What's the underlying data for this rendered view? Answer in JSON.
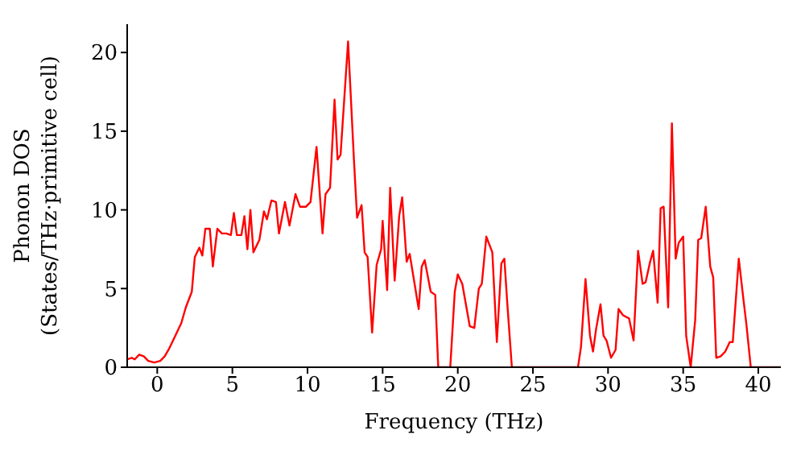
{
  "chart_data": {
    "type": "line",
    "xlabel": "Frequency (THz)",
    "ylabel": "Phonon DOS\n(States/THz·primitive cell)",
    "xlim": [
      -2,
      41.5
    ],
    "xticks": [
      0,
      5,
      10,
      15,
      20,
      25,
      30,
      35,
      40
    ],
    "ylim": [
      0,
      21.8
    ],
    "yticks": [
      0,
      5,
      10,
      15,
      20
    ],
    "grid": false,
    "legend": false,
    "marker": "none",
    "line_style": "solid",
    "x": [
      -2,
      -1.7,
      -1.5,
      -1.2,
      -0.9,
      -0.6,
      -0.2,
      0.2,
      0.5,
      0.8,
      1.2,
      1.6,
      1.9,
      2.3,
      2.5,
      2.8,
      3,
      3.2,
      3.5,
      3.7,
      4,
      4.3,
      4.6,
      4.9,
      5.1,
      5.3,
      5.6,
      5.8,
      6,
      6.2,
      6.4,
      6.8,
      7.1,
      7.3,
      7.6,
      7.9,
      8.1,
      8.5,
      8.8,
      9.2,
      9.5,
      9.9,
      10.2,
      10.6,
      11,
      11.2,
      11.5,
      11.8,
      12,
      12.2,
      12.7,
      13.1,
      13.3,
      13.6,
      13.8,
      14,
      14.3,
      14.6,
      14.9,
      15,
      15.3,
      15.5,
      15.8,
      16.1,
      16.3,
      16.6,
      16.8,
      17.4,
      17.6,
      17.8,
      18.2,
      18.5,
      18.7,
      19.5,
      19.8,
      20,
      20.3,
      20.8,
      21.1,
      21.4,
      21.6,
      21.9,
      22.3,
      22.6,
      22.9,
      23.1,
      23.3,
      23.6,
      28,
      28.2,
      28.5,
      28.8,
      29,
      29.2,
      29.5,
      29.7,
      29.9,
      30.2,
      30.5,
      30.7,
      31,
      31.4,
      31.7,
      32,
      32.3,
      32.5,
      32.8,
      33,
      33.3,
      33.5,
      33.7,
      34,
      34.25,
      34.5,
      34.7,
      35,
      35.2,
      35.5,
      35.8,
      36,
      36.2,
      36.5,
      36.8,
      37,
      37.2,
      37.5,
      37.8,
      38.1,
      38.3,
      38.7,
      39,
      39.2,
      39.5,
      41.5
    ],
    "series": [
      {
        "color": "#ff0000",
        "values": [
          0.5,
          0.6,
          0.5,
          0.8,
          0.7,
          0.4,
          0.3,
          0.4,
          0.7,
          1.2,
          2,
          2.8,
          3.8,
          4.8,
          7,
          7.6,
          7.1,
          8.8,
          8.8,
          6.4,
          8.8,
          8.5,
          8.5,
          8.4,
          9.8,
          8.4,
          8.4,
          9.6,
          7.5,
          10,
          7.3,
          8.1,
          9.9,
          9.4,
          10.6,
          10.5,
          8.5,
          10.5,
          9,
          11,
          10.2,
          10.2,
          10.5,
          14,
          8.5,
          11,
          11.4,
          17,
          13.2,
          13.5,
          20.7,
          13,
          9.5,
          10.3,
          7.3,
          7,
          2.2,
          6.5,
          7.5,
          9.3,
          4.9,
          11.4,
          5.5,
          9.6,
          10.8,
          6.7,
          7.2,
          3.7,
          6.4,
          6.8,
          4.8,
          4.6,
          0,
          0,
          4.8,
          5.9,
          5.3,
          2.6,
          2.5,
          5,
          5.3,
          8.3,
          7.3,
          1.6,
          6.6,
          6.9,
          4,
          0,
          0,
          1.3,
          5.6,
          2,
          1,
          2.4,
          4,
          2,
          1.7,
          0.6,
          1.1,
          3.7,
          3.3,
          3.1,
          1.7,
          7.4,
          5.3,
          5.4,
          6.7,
          7.4,
          4.1,
          10.1,
          10.2,
          3.8,
          15.5,
          6.9,
          7.9,
          8.3,
          2,
          0,
          3,
          8.1,
          8.2,
          10.2,
          6.4,
          5.7,
          0.6,
          0.7,
          1,
          1.6,
          1.6,
          6.9,
          4.4,
          2.8,
          0,
          0
        ]
      }
    ]
  }
}
